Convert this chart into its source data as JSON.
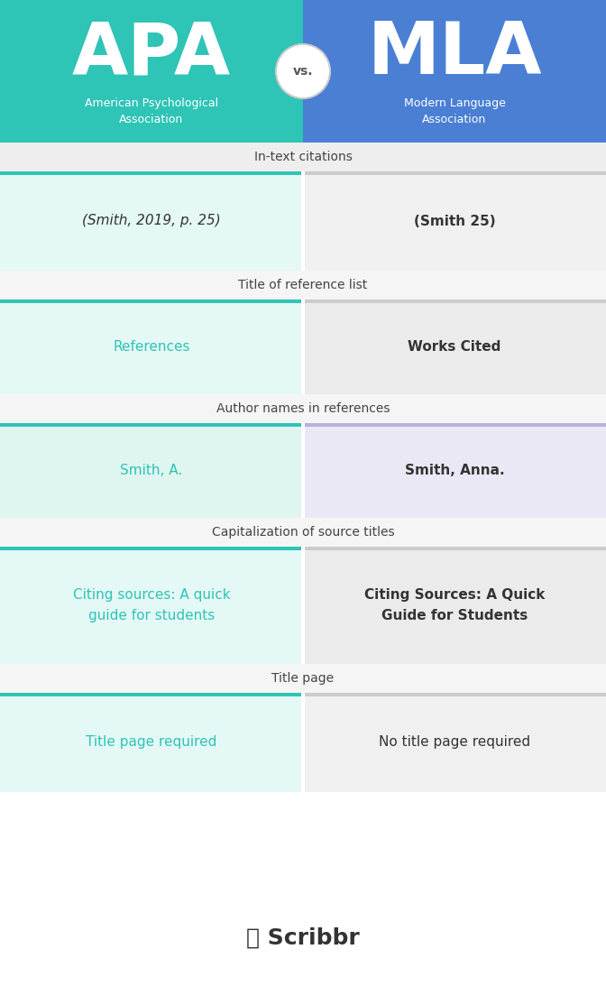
{
  "fig_width": 6.72,
  "fig_height": 10.93,
  "header_apa_color": "#2ec4b6",
  "header_mla_color": "#4a7fd4",
  "apa_title": "APA",
  "mla_title": "MLA",
  "apa_subtitle": "American Psychological\nAssociation",
  "mla_subtitle": "Modern Language\nAssociation",
  "vs_text": "vs.",
  "sections": [
    {
      "label": "In-text citations",
      "label_bg": "#eeeeee",
      "apa_text": "(Smith, 2019, p. 25)",
      "apa_italic": true,
      "apa_color": "#333333",
      "apa_bg": "#e4f8f5",
      "apa_accent": "#2ec4b6",
      "mla_text": "(Smith 25)",
      "mla_bold": true,
      "mla_color": "#333333",
      "mla_bg": "#f0f0f0",
      "mla_accent": "#cccccc"
    },
    {
      "label": "Title of reference list",
      "label_bg": "#f5f5f5",
      "apa_text": "References",
      "apa_italic": false,
      "apa_color": "#2ec4b6",
      "apa_bg": "#e4f8f5",
      "apa_accent": "#2ec4b6",
      "mla_text": "Works Cited",
      "mla_bold": true,
      "mla_color": "#333333",
      "mla_bg": "#ebebeb",
      "mla_accent": "#cccccc"
    },
    {
      "label": "Author names in references",
      "label_bg": "#f5f5f5",
      "apa_text": "Smith, A.",
      "apa_italic": false,
      "apa_color": "#2ec4b6",
      "apa_bg": "#dff5f0",
      "apa_accent": "#2ec4b6",
      "mla_text": "Smith, Anna.",
      "mla_bold": true,
      "mla_color": "#333333",
      "mla_bg": "#eae8f5",
      "mla_accent": "#b8b0dd"
    },
    {
      "label": "Capitalization of source titles",
      "label_bg": "#f5f5f5",
      "apa_text": "Citing sources: A quick\nguide for students",
      "apa_italic": false,
      "apa_color": "#2ec4b6",
      "apa_bg": "#e4f8f5",
      "apa_accent": "#2ec4b6",
      "mla_text": "Citing Sources: A Quick\nGuide for Students",
      "mla_bold": true,
      "mla_color": "#333333",
      "mla_bg": "#ebebeb",
      "mla_accent": "#cccccc"
    },
    {
      "label": "Title page",
      "label_bg": "#f5f5f5",
      "apa_text": "Title page required",
      "apa_italic": false,
      "apa_color": "#2ec4b6",
      "apa_bg": "#e4f8f5",
      "apa_accent": "#2ec4b6",
      "mla_text": "No title page required",
      "mla_bold": false,
      "mla_color": "#333333",
      "mla_bg": "#f0f0f0",
      "mla_accent": "#cccccc"
    }
  ],
  "footer_text": "Scribbr",
  "bg_color": "#ffffff"
}
